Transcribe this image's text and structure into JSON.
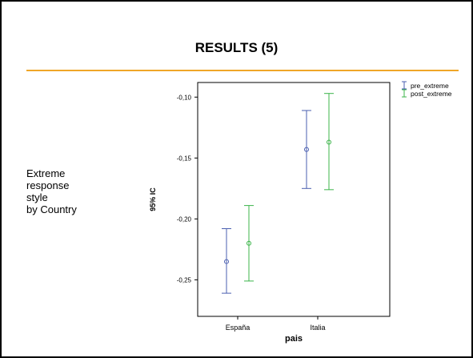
{
  "slide": {
    "title": "RESULTS (5)",
    "side_text": [
      "Extreme",
      "response",
      "style",
      "by Country"
    ]
  },
  "colors": {
    "rule": "#f0a628",
    "pre_extreme": "#4a5fb0",
    "post_extreme": "#3cb44a"
  },
  "chart_data": {
    "type": "errorbar",
    "xlabel": "pais",
    "ylabel": "95% IC",
    "categories": [
      "España",
      "Italia"
    ],
    "ylim": [
      -0.28,
      -0.088
    ],
    "yticks": [
      -0.1,
      -0.15,
      -0.2,
      -0.25
    ],
    "ytick_labels": [
      "-0,10",
      "-0,15",
      "-0,20",
      "-0,25"
    ],
    "grid": false,
    "legend_position": "top-right",
    "series": [
      {
        "name": "pre_extreme",
        "color": "#4a5fb0",
        "mean": [
          -0.235,
          -0.143
        ],
        "lower": [
          -0.261,
          -0.175
        ],
        "upper": [
          -0.208,
          -0.111
        ]
      },
      {
        "name": "post_extreme",
        "color": "#3cb44a",
        "mean": [
          -0.22,
          -0.137
        ],
        "lower": [
          -0.251,
          -0.176
        ],
        "upper": [
          -0.189,
          -0.097
        ]
      }
    ]
  }
}
